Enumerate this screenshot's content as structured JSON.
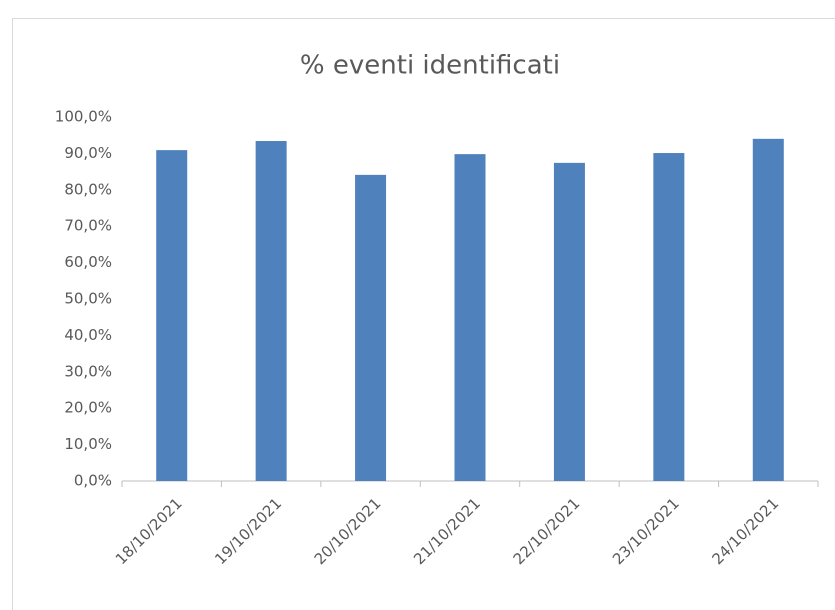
{
  "chart_data": {
    "type": "bar",
    "title": "% eventi identificati",
    "categories": [
      "18/10/2021",
      "19/10/2021",
      "20/10/2021",
      "21/10/2021",
      "22/10/2021",
      "23/10/2021",
      "24/10/2021"
    ],
    "values": [
      90.9,
      93.4,
      84.1,
      89.8,
      87.4,
      90.1,
      94.0
    ],
    "color": "#4f81bd",
    "ylim": [
      0,
      100
    ],
    "yticks": [
      {
        "value": 0,
        "label": "0,0%"
      },
      {
        "value": 10,
        "label": "10,0%"
      },
      {
        "value": 20,
        "label": "20,0%"
      },
      {
        "value": 30,
        "label": "30,0%"
      },
      {
        "value": 40,
        "label": "40,0%"
      },
      {
        "value": 50,
        "label": "50,0%"
      },
      {
        "value": 60,
        "label": "60,0%"
      },
      {
        "value": 70,
        "label": "70,0%"
      },
      {
        "value": 80,
        "label": "80,0%"
      },
      {
        "value": 90,
        "label": "90,0%"
      },
      {
        "value": 100,
        "label": "100,0%"
      }
    ],
    "grid": false
  }
}
